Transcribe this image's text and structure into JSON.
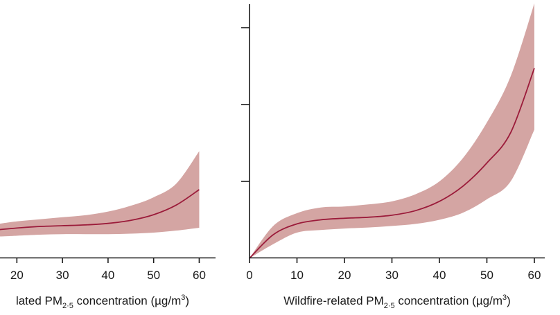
{
  "chart_data": [
    {
      "type": "line",
      "xlabel_parts": {
        "pre": "lated PM",
        "sub": "2·5",
        "mid": " concentration (µg/m",
        "sup": "3",
        "post": ")"
      },
      "x_ticks": [
        20,
        30,
        40,
        50,
        60
      ],
      "xlim": [
        16.3,
        61.3
      ],
      "ylim": [
        0,
        1
      ],
      "colors": {
        "line": "#9b1b3a",
        "band": "#d4a5a3"
      },
      "series": [
        {
          "x": [
            16.3,
            20,
            25,
            30,
            35,
            40,
            45,
            50,
            55,
            60
          ],
          "values": [
            0.112,
            0.118,
            0.124,
            0.127,
            0.13,
            0.136,
            0.148,
            0.17,
            0.208,
            0.268
          ],
          "lower": [
            0.085,
            0.088,
            0.092,
            0.094,
            0.094,
            0.094,
            0.096,
            0.1,
            0.108,
            0.119
          ],
          "upper": [
            0.135,
            0.144,
            0.152,
            0.16,
            0.168,
            0.182,
            0.205,
            0.238,
            0.292,
            0.418
          ]
        }
      ]
    },
    {
      "type": "line",
      "xlabel_parts": {
        "pre": "Wildfire-related PM",
        "sub": "2·5",
        "mid": " concentration (µg/m",
        "sup": "3",
        "post": ")"
      },
      "x_ticks": [
        0,
        10,
        20,
        30,
        40,
        50,
        60
      ],
      "y_ticks": [
        0.3,
        0.6,
        0.9
      ],
      "xlim": [
        0,
        60
      ],
      "ylim": [
        0,
        1
      ],
      "colors": {
        "line": "#9b1b3a",
        "band": "#d4a5a3"
      },
      "series": [
        {
          "x": [
            0,
            5,
            10,
            15,
            20,
            25,
            30,
            35,
            40,
            45,
            50,
            55,
            60
          ],
          "values": [
            0,
            0.092,
            0.134,
            0.15,
            0.156,
            0.16,
            0.168,
            0.186,
            0.222,
            0.282,
            0.372,
            0.49,
            0.742
          ],
          "lower": [
            0,
            0.055,
            0.1,
            0.11,
            0.116,
            0.12,
            0.126,
            0.134,
            0.15,
            0.178,
            0.23,
            0.3,
            0.502
          ],
          "upper": [
            0,
            0.126,
            0.176,
            0.198,
            0.202,
            0.21,
            0.222,
            0.25,
            0.3,
            0.392,
            0.53,
            0.71,
            0.995
          ]
        }
      ]
    }
  ]
}
